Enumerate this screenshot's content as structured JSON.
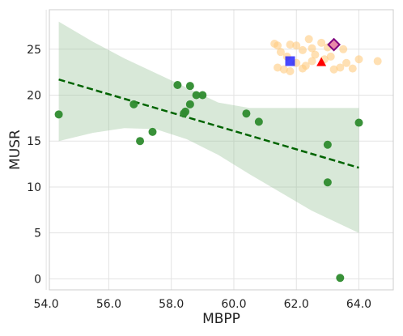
{
  "chart_data": {
    "type": "scatter",
    "title": "",
    "xlabel": "MBPP",
    "ylabel": "MUSR",
    "xlim": [
      54.1,
      65.1
    ],
    "ylim": [
      -1.2,
      29.3
    ],
    "xticks": [
      54.0,
      56.0,
      58.0,
      60.0,
      62.0,
      64.0
    ],
    "xtick_labels": [
      "54.0",
      "56.0",
      "58.0",
      "60.0",
      "62.0",
      "64.0"
    ],
    "yticks": [
      0,
      5,
      10,
      15,
      20,
      25
    ],
    "ytick_labels": [
      "0",
      "5",
      "10",
      "15",
      "20",
      "25"
    ],
    "grid": true,
    "series": [
      {
        "marker": "circle",
        "color": "#2e8b2e",
        "points": [
          {
            "x": 54.4,
            "y": 17.9
          },
          {
            "x": 56.8,
            "y": 19.0
          },
          {
            "x": 57.0,
            "y": 15.0
          },
          {
            "x": 57.4,
            "y": 16.0
          },
          {
            "x": 58.2,
            "y": 21.1
          },
          {
            "x": 58.4,
            "y": 18.0
          },
          {
            "x": 58.45,
            "y": 18.2
          },
          {
            "x": 58.6,
            "y": 21.0
          },
          {
            "x": 58.6,
            "y": 19.0
          },
          {
            "x": 58.8,
            "y": 20.0
          },
          {
            "x": 59.0,
            "y": 20.0
          },
          {
            "x": 60.4,
            "y": 18.0
          },
          {
            "x": 60.8,
            "y": 17.1
          },
          {
            "x": 63.0,
            "y": 14.6
          },
          {
            "x": 63.0,
            "y": 10.5
          },
          {
            "x": 63.4,
            "y": 0.1
          },
          {
            "x": 64.0,
            "y": 17.0
          }
        ]
      },
      {
        "marker": "circle",
        "color": "#ffcc80",
        "points": [
          {
            "x": 61.3,
            "y": 25.6
          },
          {
            "x": 61.4,
            "y": 25.4
          },
          {
            "x": 61.5,
            "y": 24.7
          },
          {
            "x": 61.7,
            "y": 24.2
          },
          {
            "x": 61.8,
            "y": 25.5
          },
          {
            "x": 62.0,
            "y": 25.4
          },
          {
            "x": 62.2,
            "y": 24.9
          },
          {
            "x": 62.4,
            "y": 26.1
          },
          {
            "x": 62.5,
            "y": 25.1
          },
          {
            "x": 62.8,
            "y": 25.7
          },
          {
            "x": 63.0,
            "y": 25.2
          },
          {
            "x": 63.5,
            "y": 25.0
          },
          {
            "x": 61.4,
            "y": 23.0
          },
          {
            "x": 61.6,
            "y": 22.8
          },
          {
            "x": 61.8,
            "y": 22.6
          },
          {
            "x": 62.0,
            "y": 23.5
          },
          {
            "x": 62.2,
            "y": 22.9
          },
          {
            "x": 62.3,
            "y": 23.2
          },
          {
            "x": 62.5,
            "y": 23.7
          },
          {
            "x": 62.6,
            "y": 24.4
          },
          {
            "x": 62.9,
            "y": 23.9
          },
          {
            "x": 63.1,
            "y": 24.2
          },
          {
            "x": 63.2,
            "y": 22.8
          },
          {
            "x": 63.4,
            "y": 23.0
          },
          {
            "x": 63.6,
            "y": 23.5
          },
          {
            "x": 63.8,
            "y": 22.9
          },
          {
            "x": 64.0,
            "y": 23.9
          },
          {
            "x": 64.6,
            "y": 23.7
          }
        ]
      },
      {
        "marker": "square",
        "color": "#1a1aff",
        "points": [
          {
            "x": 61.8,
            "y": 23.7
          }
        ]
      },
      {
        "marker": "triangle",
        "color": "#ff0000",
        "points": [
          {
            "x": 62.8,
            "y": 23.6
          }
        ]
      },
      {
        "marker": "diamond",
        "color": "#800080",
        "points": [
          {
            "x": 63.2,
            "y": 25.5
          }
        ]
      }
    ],
    "trend": {
      "color": "#006400",
      "style": "dashed",
      "x": [
        54.4,
        64.0
      ],
      "y": [
        21.7,
        12.1
      ]
    },
    "confidence_band": {
      "color": "#8fbc8f",
      "x": [
        54.4,
        55.5,
        56.5,
        57.5,
        58.5,
        59.5,
        60.5,
        61.5,
        62.5,
        63.5,
        64.0
      ],
      "upper": [
        28.0,
        25.8,
        24.0,
        22.4,
        20.8,
        19.2,
        18.6,
        18.6,
        18.6,
        18.6,
        18.6
      ],
      "lower": [
        15.0,
        15.9,
        16.4,
        16.3,
        15.2,
        13.5,
        11.4,
        9.4,
        7.4,
        5.8,
        5.0
      ]
    }
  }
}
